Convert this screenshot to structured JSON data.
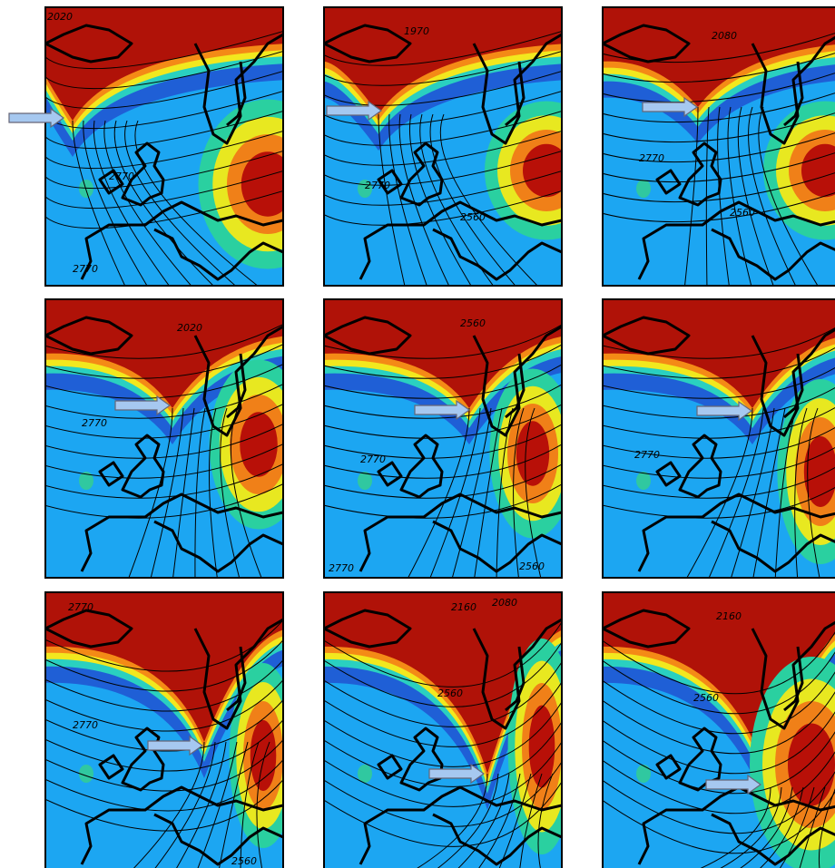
{
  "panels": [
    {
      "labels": [
        "2020",
        "2770",
        "2770"
      ]
    },
    {
      "labels": [
        "1970",
        "2770",
        "2560"
      ]
    },
    {
      "labels": [
        "2080",
        "2770",
        "2560"
      ]
    },
    {
      "labels": [
        "2020",
        "2770"
      ]
    },
    {
      "labels": [
        "2560",
        "2770",
        "2770",
        "2560"
      ]
    },
    {
      "labels": [
        "2770"
      ]
    },
    {
      "labels": [
        "2770",
        "2770",
        "2560"
      ]
    },
    {
      "labels": [
        "2160",
        "2080",
        "2560"
      ]
    },
    {
      "labels": [
        "2160",
        "2560"
      ]
    }
  ]
}
